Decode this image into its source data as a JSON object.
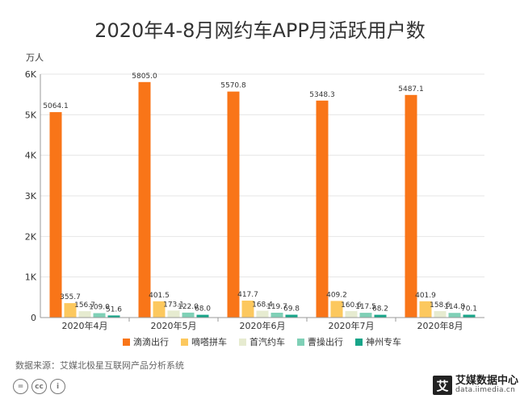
{
  "chart_data": {
    "type": "bar",
    "title": "2020年4-8月网约车APP月活跃用户数",
    "ylabel": "万人",
    "xlabel": "",
    "ylim": [
      0,
      6000
    ],
    "yticks": [
      0,
      1000,
      2000,
      3000,
      4000,
      5000,
      6000
    ],
    "ytick_labels": [
      "0",
      "1K",
      "2K",
      "3K",
      "4K",
      "5K",
      "6K"
    ],
    "grid": true,
    "legend_position": "bottom",
    "categories": [
      "2020年4月",
      "2020年5月",
      "2020年6月",
      "2020年7月",
      "2020年8月"
    ],
    "series": [
      {
        "name": "滴滴出行",
        "color": "#f97518",
        "values": [
          5064.1,
          5805.0,
          5570.8,
          5348.3,
          5487.1
        ],
        "labels": [
          "5064.1",
          "5805.0",
          "5570.8",
          "5348.3",
          "5487.1"
        ]
      },
      {
        "name": "嘀嗒拼车",
        "color": "#fcc85e",
        "values": [
          355.7,
          401.5,
          417.7,
          409.2,
          401.9
        ],
        "labels": [
          "355.7",
          "401.5",
          "417.7",
          "409.2",
          "401.9"
        ]
      },
      {
        "name": "首汽约车",
        "color": "#e6ebd0",
        "values": [
          156.7,
          173.1,
          168.4,
          160.6,
          158.6
        ],
        "labels": [
          "156.7",
          "173.1",
          "168.4",
          "160.6",
          "158.6"
        ]
      },
      {
        "name": "曹操出行",
        "color": "#7fd0b6",
        "values": [
          109.0,
          122.0,
          119.7,
          117.5,
          114.8
        ],
        "labels": [
          "109.0",
          "122.0",
          "119.7",
          "117.5",
          "114.8"
        ]
      },
      {
        "name": "神州专车",
        "color": "#17a589",
        "values": [
          51.6,
          68.0,
          69.8,
          68.2,
          70.1
        ],
        "labels": [
          "51.6",
          "68.0",
          "69.8",
          "68.2",
          "70.1"
        ]
      }
    ]
  },
  "source": "数据来源：艾媒北极星互联网产品分析系统",
  "license_icons": [
    "cc-equals-icon",
    "cc-icon",
    "cc-person-icon"
  ],
  "license_badges": [
    "=",
    "cc",
    "i"
  ],
  "logo": {
    "mark": "艾",
    "name": "艾媒数据中心",
    "url": "data.iimedia.cn"
  }
}
